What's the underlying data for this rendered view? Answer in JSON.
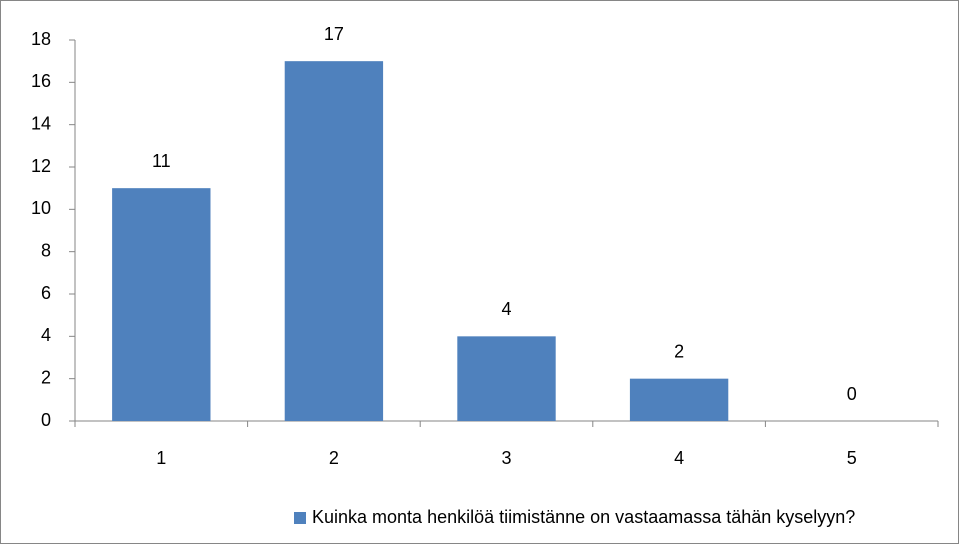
{
  "chart_data": {
    "type": "bar",
    "categories": [
      "1",
      "2",
      "3",
      "4",
      "5"
    ],
    "series": [
      {
        "name": "Kuinka monta henkilöä tiimistänne on vastaamassa tähän kyselyyn?",
        "color": "#4f81bd",
        "values": [
          11,
          17,
          4,
          2,
          0
        ]
      }
    ],
    "ylim": [
      0,
      18
    ],
    "yticks": [
      0,
      2,
      4,
      6,
      8,
      10,
      12,
      14,
      16,
      18
    ],
    "grid": false,
    "legend": "bottom",
    "data_labels": true
  }
}
